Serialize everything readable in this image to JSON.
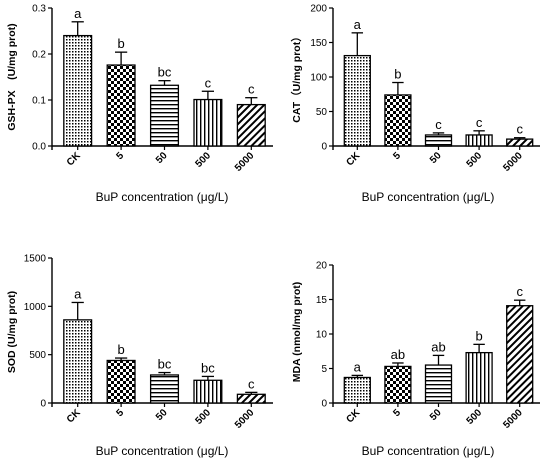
{
  "chart_data": [
    {
      "type": "bar",
      "panel": "GSH-PX",
      "ylabel": "GSH-PX　(U/mg prot)",
      "xlabel": "BuP concentration (μg/L)",
      "categories": [
        "CK",
        "5",
        "50",
        "500",
        "5000"
      ],
      "values": [
        0.24,
        0.176,
        0.132,
        0.101,
        0.09
      ],
      "errors": [
        0.03,
        0.028,
        0.01,
        0.018,
        0.015
      ],
      "labels": [
        "a",
        "b",
        "bc",
        "c",
        "c"
      ],
      "ylim": [
        0,
        0.3
      ],
      "yticks": [
        0.0,
        0.1,
        0.2,
        0.3
      ],
      "ytick_labels": [
        "0.0",
        "0.1",
        "0.2",
        "0.3"
      ],
      "patterns": [
        "dots",
        "checker",
        "hlines",
        "vlines",
        "diag"
      ]
    },
    {
      "type": "bar",
      "panel": "CAT",
      "ylabel": "CAT（U/mg prot）",
      "xlabel": "BuP concentration (μg/L)",
      "categories": [
        "CK",
        "5",
        "50",
        "500",
        "5000"
      ],
      "values": [
        131,
        74,
        16,
        16,
        10
      ],
      "errors": [
        33,
        18,
        3,
        6,
        2
      ],
      "labels": [
        "a",
        "b",
        "c",
        "c",
        "c"
      ],
      "ylim": [
        0,
        200
      ],
      "yticks": [
        0,
        50,
        100,
        150,
        200
      ],
      "ytick_labels": [
        "0",
        "50",
        "100",
        "150",
        "200"
      ],
      "patterns": [
        "dots",
        "checker",
        "hlines",
        "vlines",
        "diag"
      ]
    },
    {
      "type": "bar",
      "panel": "SOD",
      "ylabel": "SOD (U/mg prot)",
      "xlabel": "BuP concentration (μg/L)",
      "categories": [
        "CK",
        "5",
        "50",
        "500",
        "5000"
      ],
      "values": [
        860,
        440,
        290,
        235,
        90
      ],
      "errors": [
        180,
        25,
        25,
        40,
        20
      ],
      "labels": [
        "a",
        "b",
        "bc",
        "bc",
        "c"
      ],
      "ylim": [
        0,
        1500
      ],
      "yticks": [
        0,
        500,
        1000,
        1500
      ],
      "ytick_labels": [
        "0",
        "500",
        "1000",
        "1500"
      ],
      "patterns": [
        "dots",
        "checker",
        "hlines",
        "vlines",
        "diag"
      ]
    },
    {
      "type": "bar",
      "panel": "MDA",
      "ylabel": "MDA (nmol/mg prot)",
      "xlabel": "BuP concentration (μg/L)",
      "categories": [
        "CK",
        "5",
        "50",
        "500",
        "5000"
      ],
      "values": [
        3.7,
        5.3,
        5.5,
        7.3,
        14.1
      ],
      "errors": [
        0.3,
        0.5,
        1.4,
        1.2,
        0.8
      ],
      "labels": [
        "a",
        "ab",
        "ab",
        "b",
        "c"
      ],
      "ylim": [
        0,
        20
      ],
      "yticks": [
        0,
        5,
        10,
        15,
        20
      ],
      "ytick_labels": [
        "0",
        "5",
        "10",
        "15",
        "20"
      ],
      "patterns": [
        "dots",
        "checker",
        "hlines",
        "vlines",
        "diag"
      ]
    }
  ]
}
